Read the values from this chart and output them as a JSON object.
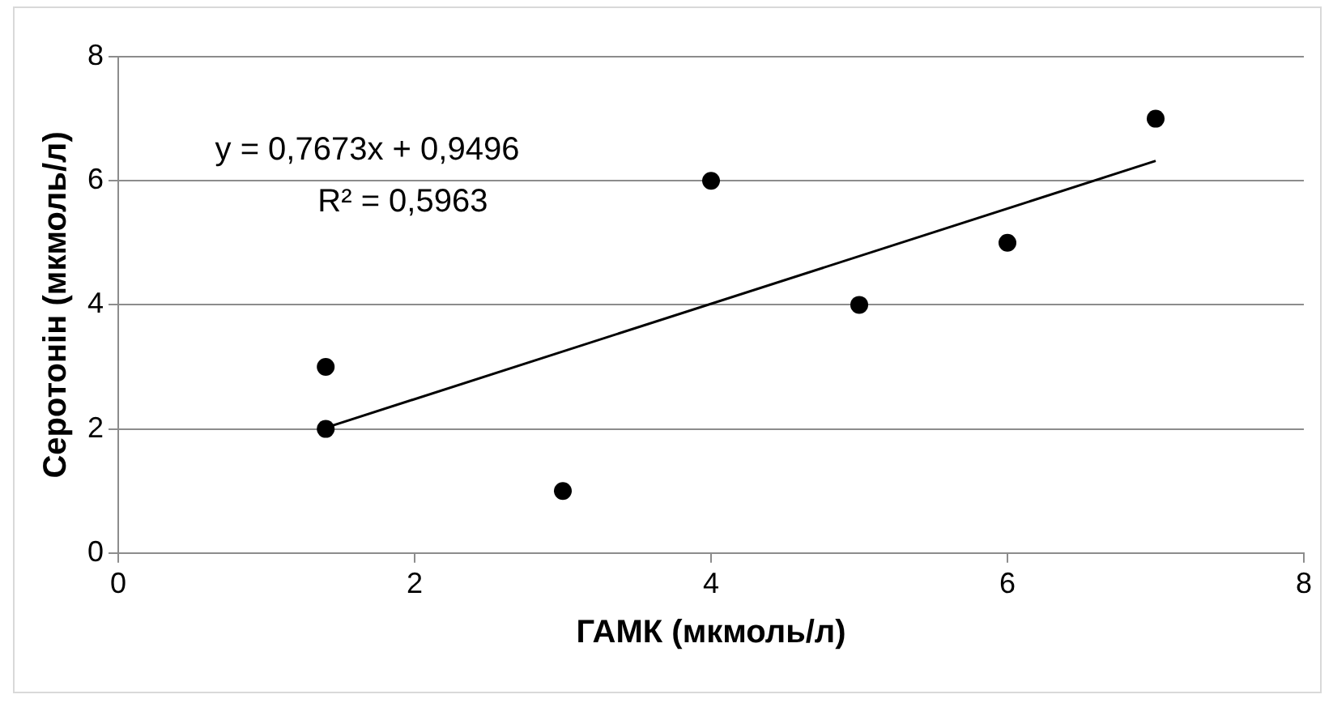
{
  "chart_data": {
    "type": "scatter",
    "xlabel": "ГАМК (мкмоль/л)",
    "ylabel": "Серотонін (мкмоль/л)",
    "series": [
      {
        "color": "#000000",
        "marker": "circle",
        "x": [
          1.4,
          1.4,
          3,
          4,
          5,
          6,
          7
        ],
        "values": [
          3,
          2,
          1,
          6,
          4,
          5,
          7
        ]
      },
      {
        "type": "line",
        "color": "#000000",
        "marker": "none",
        "x": [
          1.4,
          7
        ],
        "values": [
          2.02,
          6.32
        ]
      }
    ],
    "annotations": [
      "y = 0,7673x + 0,9496",
      "R² = 0,5963"
    ],
    "xlim": [
      0,
      8
    ],
    "xticks": [
      0,
      2,
      4,
      6,
      8
    ],
    "ylim": [
      0,
      8
    ],
    "yticks": [
      0,
      2,
      4,
      6,
      8
    ],
    "grid": "y",
    "legend": false
  }
}
